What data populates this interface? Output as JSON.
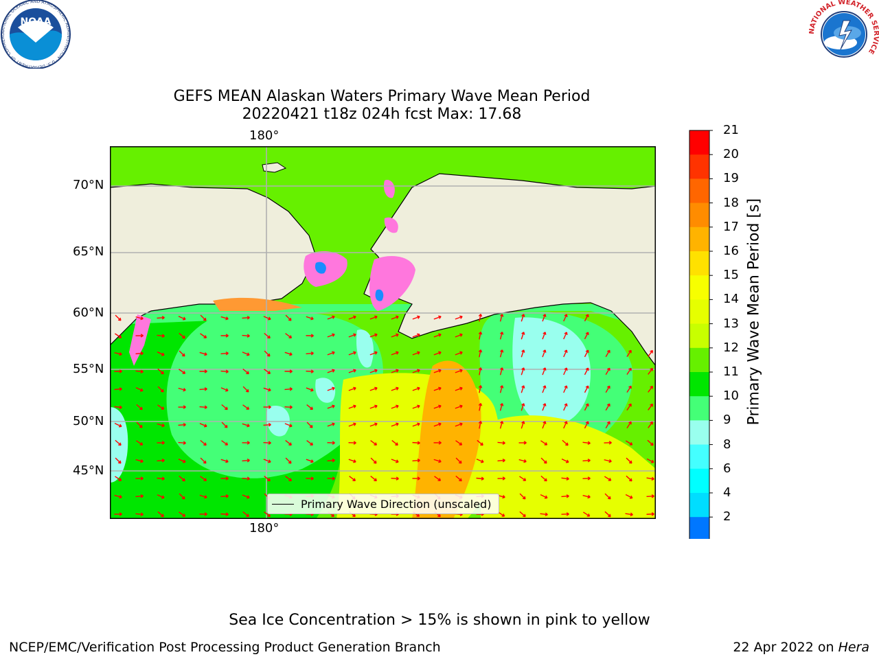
{
  "title_line1": "GEFS MEAN Alaskan Waters Primary Wave Mean Period",
  "title_line2": "20220421 t18z 024h fcst   Max: 17.68",
  "lon_label": "180°",
  "lat_labels": [
    "70°N",
    "65°N",
    "60°N",
    "55°N",
    "50°N",
    "45°N"
  ],
  "legend_label": "Primary Wave Direction (unscaled)",
  "colorbar": {
    "label": "Primary Wave Mean Period [s]",
    "ticks": [
      "21",
      "20",
      "19",
      "18",
      "17",
      "16",
      "15",
      "14",
      "13",
      "12",
      "11",
      "10",
      "9",
      "8",
      "6",
      "4",
      "2"
    ],
    "colors": [
      "#ff0000",
      "#ff3300",
      "#ff6600",
      "#ff8c00",
      "#ffb300",
      "#ffe100",
      "#f7ff00",
      "#e6ff00",
      "#c8ff00",
      "#66f000",
      "#00e600",
      "#44ff77",
      "#99ffee",
      "#44ffff",
      "#00ffff",
      "#00ddff",
      "#0077ff"
    ],
    "extend_color": "#0000ff"
  },
  "caption": "Sea Ice Concentration > 15% is shown in pink to yellow",
  "footer_left": "NCEP/EMC/Verification Post Processing Product Generation Branch",
  "footer_right_date": "22 Apr 2022 on",
  "footer_right_host": "Hera",
  "logos": {
    "noaa_text": "NOAA",
    "noaa_ring": "NATIONAL OCEANIC AND ATMOSPHERIC ADMINISTRATION · U.S. DEPARTMENT OF COMMERCE ·",
    "nws_ring": "NATIONAL WEATHER SERVICE"
  }
}
